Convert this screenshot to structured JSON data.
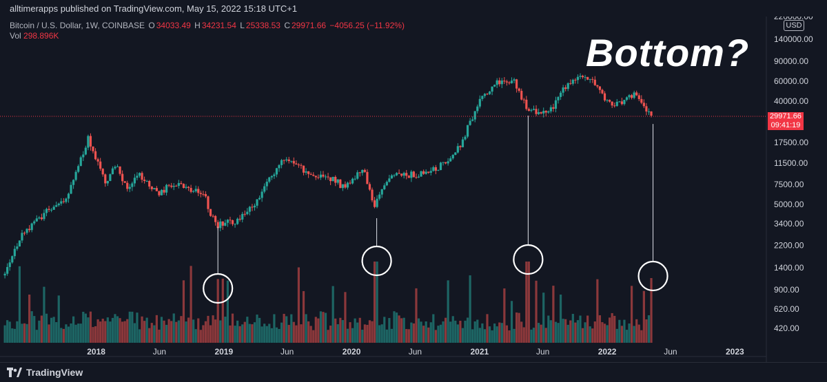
{
  "header": {
    "publish_text": "alltimerapps published on TradingView.com, May 15, 2022 15:18 UTC+1"
  },
  "legend": {
    "symbol": "Bitcoin / U.S. Dollar, 1W, COINBASE",
    "open_label": "O",
    "open": "34033.49",
    "high_label": "H",
    "high": "34231.54",
    "low_label": "L",
    "low": "25338.53",
    "close_label": "C",
    "close": "29971.66",
    "change": "−4056.25 (−11.92%)",
    "vol_label": "Vol",
    "vol_value": "298.896K"
  },
  "annotation": "Bottom?",
  "price_axis": {
    "currency": "USD",
    "labels": [
      "220000.00",
      "140000.00",
      "90000.00",
      "60000.00",
      "40000.00",
      "17500.00",
      "11500.00",
      "7500.00",
      "5000.00",
      "3400.00",
      "2200.00",
      "1400.00",
      "900.00",
      "620.00",
      "420.00"
    ],
    "current_price": "29971.66",
    "countdown": "09:41:19"
  },
  "time_axis": {
    "labels": [
      "2018",
      "Jun",
      "2019",
      "Jun",
      "2020",
      "Jun",
      "2021",
      "Jun",
      "2022",
      "Jun",
      "2023"
    ]
  },
  "footer": {
    "brand": "TradingView"
  },
  "colors": {
    "up": "#26a69a",
    "down": "#ef5350",
    "background": "#131722",
    "text": "#d1d4dc"
  },
  "chart_data": {
    "type": "candlestick",
    "title": "Bitcoin / U.S. Dollar, 1W, COINBASE",
    "y_scale": "log",
    "ylim": [
      1800,
      220000
    ],
    "xlim": [
      "2017-04-01",
      "2023-04-01"
    ],
    "price_path": [
      [
        "2017-04-15",
        1200
      ],
      [
        "2017-06-10",
        2800
      ],
      [
        "2017-08-15",
        4200
      ],
      [
        "2017-10-15",
        5800
      ],
      [
        "2017-12-17",
        19000
      ],
      [
        "2018-02-05",
        7500
      ],
      [
        "2018-03-05",
        11000
      ],
      [
        "2018-04-05",
        6800
      ],
      [
        "2018-05-05",
        9500
      ],
      [
        "2018-07-01",
        6200
      ],
      [
        "2018-08-15",
        7500
      ],
      [
        "2018-11-10",
        6300
      ],
      [
        "2018-12-15",
        3300
      ],
      [
        "2019-02-15",
        3600
      ],
      [
        "2019-04-05",
        5000
      ],
      [
        "2019-06-26",
        13000
      ],
      [
        "2019-08-15",
        10500
      ],
      [
        "2019-09-25",
        8300
      ],
      [
        "2019-10-26",
        9200
      ],
      [
        "2019-12-15",
        7200
      ],
      [
        "2020-02-12",
        10300
      ],
      [
        "2020-03-13",
        4900
      ],
      [
        "2020-05-01",
        8800
      ],
      [
        "2020-07-20",
        9200
      ],
      [
        "2020-09-15",
        10800
      ],
      [
        "2020-11-01",
        14000
      ],
      [
        "2021-01-08",
        39000
      ],
      [
        "2021-02-21",
        57000
      ],
      [
        "2021-04-14",
        63000
      ],
      [
        "2021-05-20",
        36000
      ],
      [
        "2021-07-20",
        30000
      ],
      [
        "2021-09-06",
        52000
      ],
      [
        "2021-11-10",
        68000
      ],
      [
        "2022-01-22",
        35000
      ],
      [
        "2022-03-28",
        47000
      ],
      [
        "2022-05-12",
        29971
      ]
    ],
    "bottoms": [
      {
        "date": "2018-12-15",
        "price": 3200
      },
      {
        "date": "2020-03-13",
        "price": 3800
      },
      {
        "date": "2021-05-20",
        "price": 30000
      },
      {
        "date": "2022-05-12",
        "price": 25338
      }
    ],
    "volume_scale": [
      420,
      1400
    ]
  }
}
